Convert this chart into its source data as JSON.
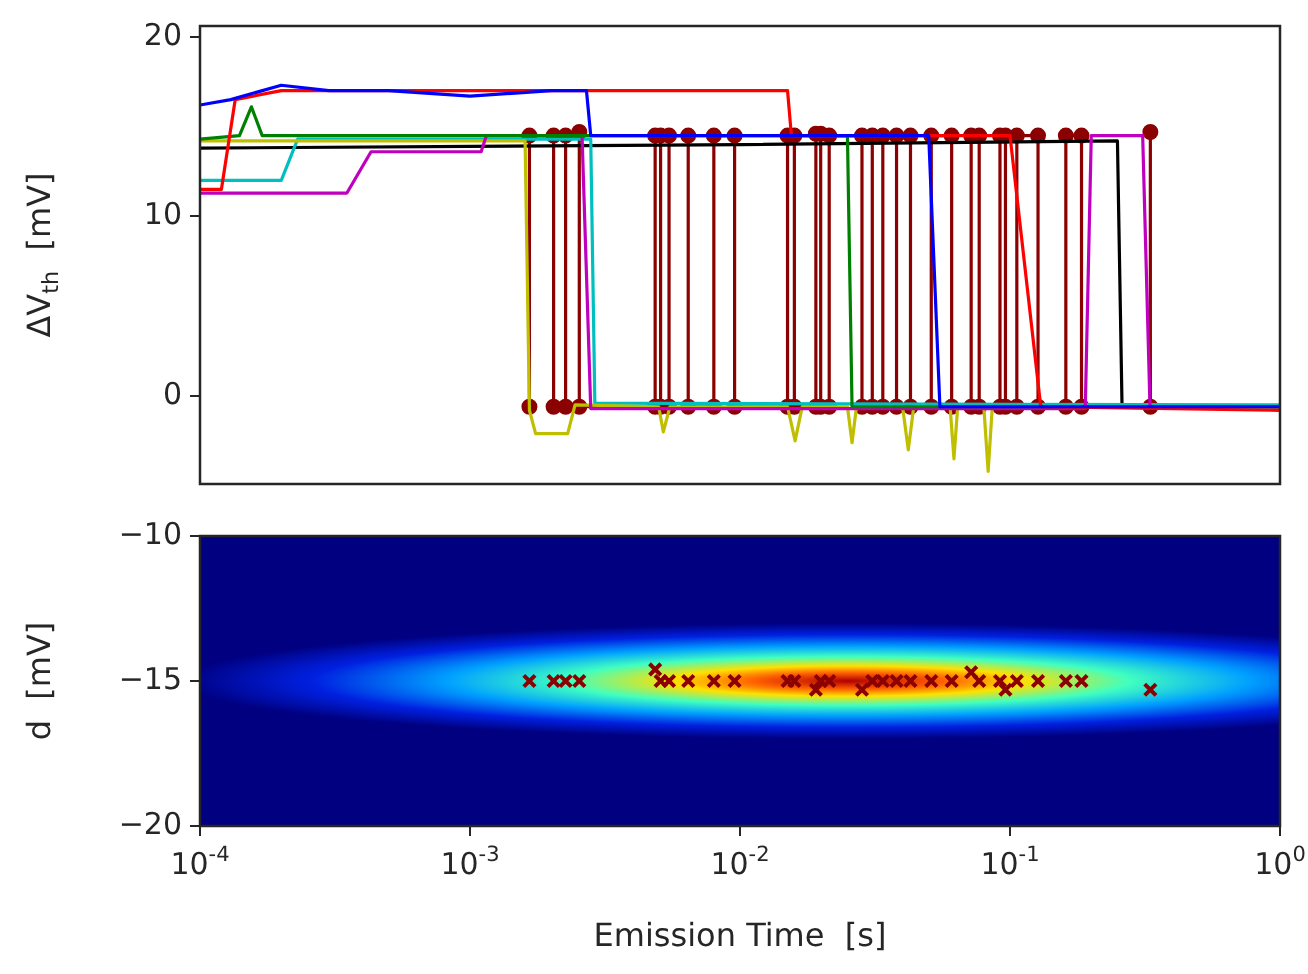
{
  "chart_data": [
    {
      "type": "line",
      "ylabel": "ΔV$_{th}$  [mV]",
      "log": "x",
      "xlim": [
        0.0001,
        1
      ],
      "ylim": [
        -4.9,
        20.6
      ],
      "yticks": [
        0,
        10,
        20
      ],
      "tick_labels": "y",
      "grid": false,
      "legend": false,
      "series": [
        {
          "color": "#0000ff",
          "marker": "none",
          "x": [
            0.0001,
            0.00013,
            0.0002,
            0.0003,
            0.0005,
            0.001,
            0.002,
            0.0027,
            0.0028,
            0.05,
            0.055,
            1
          ],
          "values": [
            16.2,
            16.5,
            17.3,
            17.0,
            17.0,
            16.7,
            17.0,
            17.0,
            14.5,
            14.5,
            -0.6,
            -0.6
          ]
        },
        {
          "color": "#ff0000",
          "marker": "none",
          "x": [
            0.0001,
            0.00012,
            0.000135,
            0.0002,
            0.0004,
            0.0006,
            0.001,
            0.003,
            0.015,
            0.0155,
            0.1,
            0.13,
            1
          ],
          "values": [
            11.5,
            11.5,
            16.5,
            17,
            17,
            17,
            17,
            17,
            17,
            14.5,
            14.5,
            -0.6,
            -0.8
          ]
        },
        {
          "color": "#008000",
          "marker": "none",
          "x": [
            0.0001,
            0.00014,
            0.000155,
            0.00017,
            0.022,
            0.025,
            0.026,
            1
          ],
          "values": [
            14.3,
            14.5,
            16.1,
            14.5,
            14.5,
            14.5,
            -0.6,
            -0.6
          ]
        },
        {
          "color": "#bf00bf",
          "marker": "none",
          "x": [
            0.0001,
            0.00035,
            0.00043,
            0.0011,
            0.00115,
            0.0026,
            0.0028,
            0.19,
            0.2,
            0.31,
            0.33,
            1
          ],
          "values": [
            11.3,
            11.3,
            13.6,
            13.6,
            14.5,
            14.5,
            -0.7,
            -0.7,
            14.5,
            14.5,
            -0.6,
            -0.6
          ]
        },
        {
          "color": "#bfbf00",
          "marker": "none",
          "x": [
            0.0001,
            0.0016,
            0.00166,
            0.00175,
            0.0023,
            0.00245,
            0.005,
            0.0052,
            0.0055,
            0.015,
            0.016,
            0.017,
            0.025,
            0.026,
            0.027,
            0.04,
            0.042,
            0.044,
            0.06,
            0.062,
            0.064,
            0.08,
            0.083,
            0.086,
            1
          ],
          "values": [
            14.2,
            14.2,
            -0.8,
            -2.1,
            -2.1,
            -0.5,
            -0.6,
            -2,
            -0.6,
            -0.6,
            -2.5,
            -0.6,
            -0.6,
            -2.6,
            -0.6,
            -0.6,
            -3,
            -0.6,
            -0.6,
            -3.5,
            -0.6,
            -0.6,
            -4.2,
            -0.6,
            -0.7
          ]
        },
        {
          "color": "#00bfbf",
          "marker": "none",
          "x": [
            0.0001,
            0.0002,
            0.00023,
            0.0028,
            0.0029,
            1
          ],
          "values": [
            12,
            12,
            14.3,
            14.3,
            -0.4,
            -0.5
          ]
        },
        {
          "color": "#000000",
          "marker": "none",
          "x": [
            0.0001,
            0.01,
            0.25,
            0.26,
            1
          ],
          "values": [
            13.8,
            14.0,
            14.2,
            -0.6,
            -0.6
          ]
        },
        {
          "color": "#8b0000",
          "marker": "circle",
          "x": [
            0.00166,
            0.00166,
            0.00204,
            0.00204,
            0.00226,
            0.00226,
            0.00254,
            0.00254,
            0.00485,
            0.00485,
            0.00508,
            0.00508,
            0.00546,
            0.00546,
            0.00643,
            0.00643,
            0.008,
            0.008,
            0.00955,
            0.00955,
            0.015,
            0.015,
            0.0159,
            0.0159,
            0.0191,
            0.0191,
            0.0199,
            0.0199,
            0.0214,
            0.0214,
            0.0283,
            0.0283,
            0.0309,
            0.0309,
            0.0338,
            0.0338,
            0.038,
            0.038,
            0.0428,
            0.0428,
            0.0511,
            0.0511,
            0.0608,
            0.0608,
            0.0718,
            0.0718,
            0.0769,
            0.0769,
            0.0918,
            0.0918,
            0.0962,
            0.0962,
            0.106,
            0.106,
            0.127,
            0.127,
            0.161,
            0.161,
            0.184,
            0.184,
            0.331,
            0.331
          ],
          "values": [
            -0.6,
            14.5,
            14.5,
            -0.6,
            -0.6,
            14.5,
            14.7,
            -0.6,
            -0.6,
            14.5,
            14.5,
            -0.6,
            -0.6,
            14.5,
            14.5,
            -0.6,
            -0.6,
            14.5,
            14.5,
            -0.6,
            -0.6,
            14.5,
            14.5,
            -0.6,
            -0.6,
            14.6,
            14.6,
            -0.6,
            -0.6,
            14.5,
            14.5,
            -0.6,
            -0.6,
            14.5,
            14.5,
            -0.6,
            -0.6,
            14.5,
            14.5,
            -0.6,
            -0.6,
            14.5,
            14.5,
            -0.6,
            -0.6,
            14.5,
            14.5,
            -0.6,
            -0.6,
            14.5,
            14.5,
            -0.6,
            -0.6,
            14.5,
            14.5,
            -0.6,
            -0.6,
            14.5,
            14.5,
            -0.6,
            -0.6,
            14.7
          ]
        }
      ]
    },
    {
      "type": "scatter",
      "xlabel": "Emission Time  [s]",
      "ylabel": "d  [mV]",
      "log": "x",
      "xlim": [
        0.0001,
        1
      ],
      "ylim": [
        -20,
        -10
      ],
      "xticks": [
        {
          "value": 0.0001,
          "label": "10$^{-4}$"
        },
        {
          "value": 0.001,
          "label": "10$^{-3}$"
        },
        {
          "value": 0.01,
          "label": "10$^{-2}$"
        },
        {
          "value": 0.1,
          "label": "10$^{-1}$"
        },
        {
          "value": 1,
          "label": "10$^{0}$"
        }
      ],
      "yticks": [
        {
          "value": -20,
          "label": "−20"
        },
        {
          "value": -15,
          "label": "−15"
        },
        {
          "value": -10,
          "label": "−10"
        }
      ],
      "grid": false,
      "legend": false,
      "series": [
        {
          "type": "scatter",
          "color": "#8b0000",
          "marker": "cross",
          "x": [
            0.00166,
            0.00204,
            0.00226,
            0.00254,
            0.00485,
            0.00508,
            0.00546,
            0.00643,
            0.008,
            0.00955,
            0.015,
            0.0159,
            0.0191,
            0.0199,
            0.0214,
            0.0283,
            0.0309,
            0.0338,
            0.038,
            0.0428,
            0.0511,
            0.0608,
            0.0718,
            0.0769,
            0.0918,
            0.0962,
            0.106,
            0.127,
            0.161,
            0.184,
            0.331
          ],
          "values": [
            -15,
            -15,
            -15,
            -15,
            -14.6,
            -15,
            -15,
            -15,
            -15,
            -15,
            -15,
            -15,
            -15.3,
            -15,
            -15,
            -15.3,
            -15,
            -15,
            -15,
            -15,
            -15,
            -15,
            -14.7,
            -15,
            -15,
            -15.3,
            -15,
            -15,
            -15,
            -15,
            -15.3
          ]
        }
      ]
    }
  ]
}
